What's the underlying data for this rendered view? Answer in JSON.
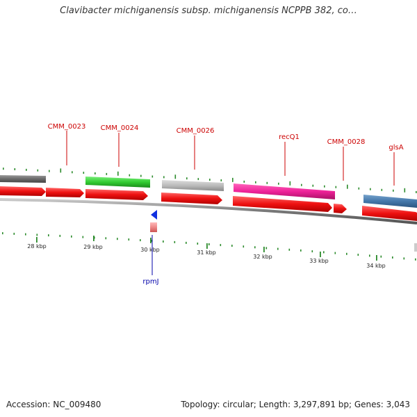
{
  "title": "Clavibacter michiganensis subsp. michiganensis NCPPB 382, co…",
  "footer": {
    "accession": "Accession: NC_009480",
    "summary": "Topology: circular; Length: 3,297,891 bp; Genes: 3,043"
  },
  "colors": {
    "cds_red": "#ee1111",
    "backbone": "#888888",
    "tick": "#2a8a2a",
    "label_red": "#cc0000",
    "label_blue": "#0000aa",
    "rpmJ_blue": "#1030e0"
  },
  "scale_labels": [
    "28 kbp",
    "29 kbp",
    "30 kbp",
    "31 kbp",
    "32 kbp",
    "33 kbp",
    "34 kbp"
  ],
  "gene_labels": [
    {
      "text": "CMM_0023",
      "color": "red"
    },
    {
      "text": "CMM_0024",
      "color": "red"
    },
    {
      "text": "CMM_0026",
      "color": "red"
    },
    {
      "text": "recQ1",
      "color": "red"
    },
    {
      "text": "CMM_0028",
      "color": "red"
    },
    {
      "text": "glsA",
      "color": "red"
    },
    {
      "text": "rpmJ",
      "color": "blue"
    }
  ],
  "feature_colors": {
    "grey_dark": "#6a6a6a",
    "green": "#33cc33",
    "grey_light": "#bbbbbb",
    "magenta": "#ee2299",
    "steelblue": "#4477aa",
    "pink": "#ee8888"
  }
}
